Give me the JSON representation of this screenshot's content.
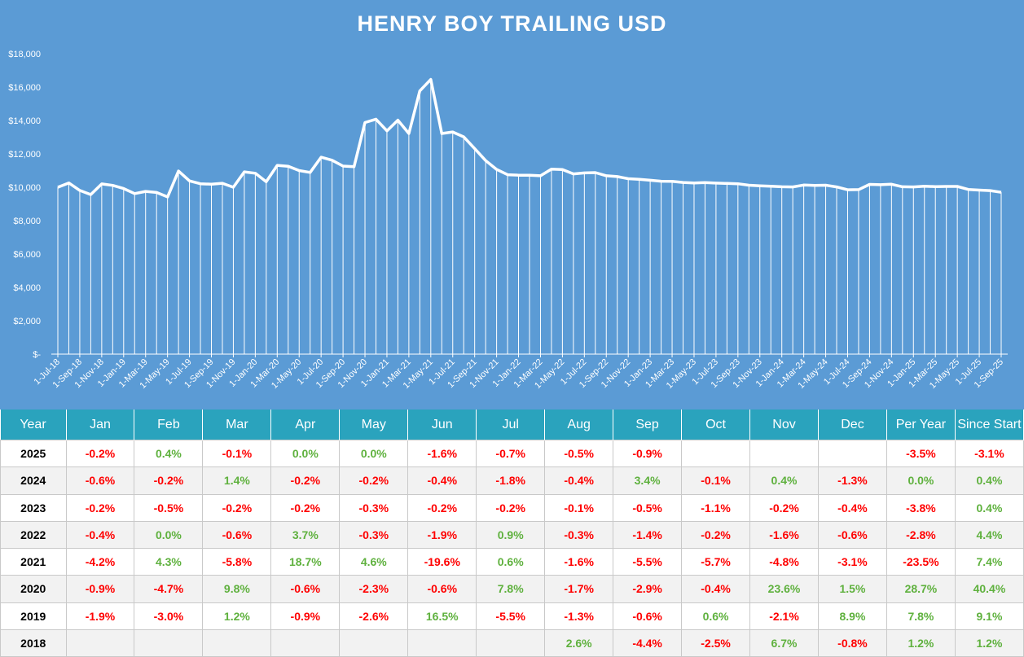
{
  "chart_data": {
    "type": "area",
    "title": "HENRY BOY TRAILING USD",
    "y_ticks": [
      "$-",
      "$2,000",
      "$4,000",
      "$6,000",
      "$8,000",
      "$10,000",
      "$12,000",
      "$14,000",
      "$16,000",
      "$18,000"
    ],
    "ylim": [
      0,
      18000
    ],
    "x_tick_labels": [
      "1-Jul-18",
      "1-Sep-18",
      "1-Nov-18",
      "1-Jan-19",
      "1-Mar-19",
      "1-May-19",
      "1-Jul-19",
      "1-Sep-19",
      "1-Nov-19",
      "1-Jan-20",
      "1-Mar-20",
      "1-May-20",
      "1-Jul-20",
      "1-Sep-20",
      "1-Nov-20",
      "1-Jan-21",
      "1-Mar-21",
      "1-May-21",
      "1-Jul-21",
      "1-Sep-21",
      "1-Nov-21",
      "1-Jan-22",
      "1-Mar-22",
      "1-May-22",
      "1-Jul-22",
      "1-Sep-22",
      "1-Nov-22",
      "1-Jan-23",
      "1-Mar-23",
      "1-May-23",
      "1-Jul-23",
      "1-Sep-23",
      "1-Nov-23",
      "1-Jan-24",
      "1-Mar-24",
      "1-May-24",
      "1-Jul-24",
      "1-Sep-24",
      "1-Nov-24",
      "1-Jan-25",
      "1-Mar-25",
      "1-May-25",
      "1-Jul-25",
      "1-Sep-25"
    ],
    "values": [
      10000,
      10260,
      9810,
      9560,
      10200,
      10110,
      9920,
      9620,
      9750,
      9690,
      9420,
      10970,
      10380,
      10210,
      10180,
      10240,
      10000,
      10920,
      10840,
      10330,
      11310,
      11260,
      11000,
      10890,
      11800,
      11620,
      11270,
      11230,
      13880,
      14080,
      13380,
      14020,
      13220,
      15770,
      16460,
      13220,
      13310,
      13020,
      12310,
      11600,
      11070,
      10750,
      10720,
      10720,
      10690,
      11090,
      11060,
      10800,
      10860,
      10880,
      10690,
      10640,
      10510,
      10480,
      10420,
      10360,
      10350,
      10290,
      10260,
      10280,
      10250,
      10230,
      10210,
      10120,
      10090,
      10060,
      10030,
      10020,
      10130,
      10110,
      10120,
      10020,
      9850,
      9860,
      10170,
      10150,
      10180,
      10030,
      10020,
      10060,
      10040,
      10050,
      10050,
      9870,
      9830,
      9800,
      9700
    ],
    "grid": false,
    "legend": "none"
  },
  "table": {
    "headers": [
      "Year",
      "Jan",
      "Feb",
      "Mar",
      "Apr",
      "May",
      "Jun",
      "Jul",
      "Aug",
      "Sep",
      "Oct",
      "Nov",
      "Dec",
      "Per Year",
      "Since Start"
    ],
    "rows": [
      [
        "2025",
        "-0.2%",
        "0.4%",
        "-0.1%",
        "0.0%",
        "0.0%",
        "-1.6%",
        "-0.7%",
        "-0.5%",
        "-0.9%",
        "",
        "",
        "",
        "-3.5%",
        "-3.1%"
      ],
      [
        "2024",
        "-0.6%",
        "-0.2%",
        "1.4%",
        "-0.2%",
        "-0.2%",
        "-0.4%",
        "-1.8%",
        "-0.4%",
        "3.4%",
        "-0.1%",
        "0.4%",
        "-1.3%",
        "0.0%",
        "0.4%"
      ],
      [
        "2023",
        "-0.2%",
        "-0.5%",
        "-0.2%",
        "-0.2%",
        "-0.3%",
        "-0.2%",
        "-0.2%",
        "-0.1%",
        "-0.5%",
        "-1.1%",
        "-0.2%",
        "-0.4%",
        "-3.8%",
        "0.4%"
      ],
      [
        "2022",
        "-0.4%",
        "0.0%",
        "-0.6%",
        "3.7%",
        "-0.3%",
        "-1.9%",
        "0.9%",
        "-0.3%",
        "-1.4%",
        "-0.2%",
        "-1.6%",
        "-0.6%",
        "-2.8%",
        "4.4%"
      ],
      [
        "2021",
        "-4.2%",
        "4.3%",
        "-5.8%",
        "18.7%",
        "4.6%",
        "-19.6%",
        "0.6%",
        "-1.6%",
        "-5.5%",
        "-5.7%",
        "-4.8%",
        "-3.1%",
        "-23.5%",
        "7.4%"
      ],
      [
        "2020",
        "-0.9%",
        "-4.7%",
        "9.8%",
        "-0.6%",
        "-2.3%",
        "-0.6%",
        "7.8%",
        "-1.7%",
        "-2.9%",
        "-0.4%",
        "23.6%",
        "1.5%",
        "28.7%",
        "40.4%"
      ],
      [
        "2019",
        "-1.9%",
        "-3.0%",
        "1.2%",
        "-0.9%",
        "-2.6%",
        "16.5%",
        "-5.5%",
        "-1.3%",
        "-0.6%",
        "0.6%",
        "-2.1%",
        "8.9%",
        "7.8%",
        "9.1%"
      ],
      [
        "2018",
        "",
        "",
        "",
        "",
        "",
        "",
        "",
        "2.6%",
        "-4.4%",
        "-2.5%",
        "6.7%",
        "-0.8%",
        "1.2%",
        "1.2%"
      ]
    ]
  },
  "colors": {
    "panel_bg": "#5b9bd5",
    "line": "#ffffff",
    "header_bg": "#2aa3bd",
    "negative": "#ff0000",
    "positive": "#5fb13e"
  }
}
